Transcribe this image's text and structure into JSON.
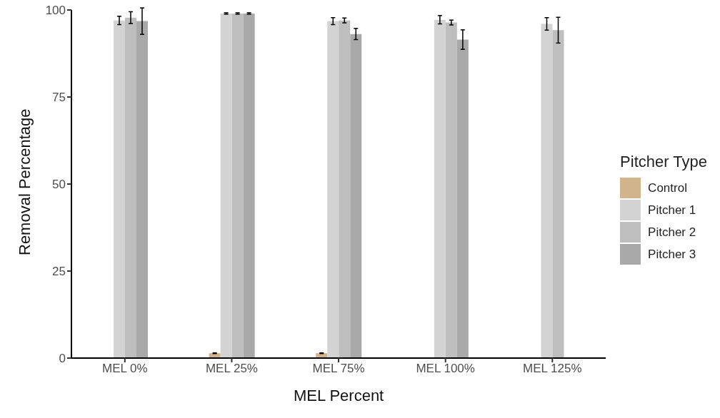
{
  "chart_data": {
    "type": "bar",
    "xlabel": "MEL Percent",
    "ylabel": "Removal Percentage",
    "legend_title": "Pitcher Type",
    "categories": [
      "MEL 0%",
      "MEL 25%",
      "MEL 75%",
      "MEL 100%",
      "MEL 125%"
    ],
    "series": [
      {
        "name": "Control",
        "color": "#d2b48c",
        "values": [
          null,
          1.4,
          1.4,
          null,
          null
        ],
        "errors": [
          null,
          0.1,
          0.1,
          null,
          null
        ]
      },
      {
        "name": "Pitcher 1",
        "color": "#d3d3d3",
        "values": [
          97.0,
          99.0,
          96.8,
          97.2,
          96.0
        ],
        "errors": [
          1.2,
          0.2,
          1.0,
          1.2,
          1.8
        ]
      },
      {
        "name": "Pitcher 2",
        "color": "#bebebe",
        "values": [
          97.8,
          99.0,
          97.0,
          96.4,
          94.2
        ],
        "errors": [
          1.7,
          0.2,
          0.7,
          0.7,
          3.7
        ]
      },
      {
        "name": "Pitcher 3",
        "color": "#a9a9a9",
        "values": [
          96.8,
          99.0,
          93.1,
          91.5,
          null
        ],
        "errors": [
          3.8,
          0.2,
          1.6,
          2.8,
          null
        ]
      }
    ],
    "ylim": [
      0,
      100
    ],
    "yticks": [
      0,
      25,
      50,
      75,
      100
    ],
    "grid": false,
    "legend": "right"
  }
}
